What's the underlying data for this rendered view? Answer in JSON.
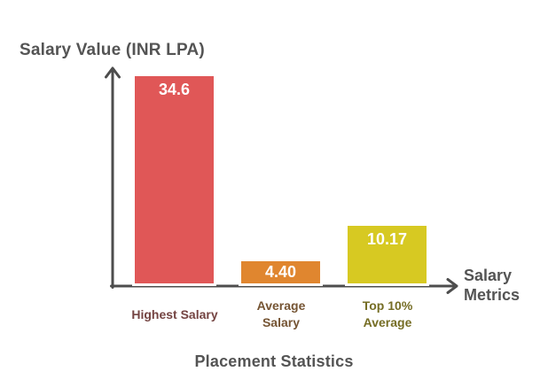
{
  "chart_data": {
    "type": "bar",
    "title": "Placement Statistics",
    "xlabel": "Salary Metrics",
    "ylabel": "Salary Value (INR LPA)",
    "categories": [
      "Highest Salary",
      "Average Salary",
      "Top 10% Average"
    ],
    "values": [
      34.6,
      4.4,
      10.17
    ],
    "value_labels": [
      "34.6",
      "4.40",
      "10.17"
    ],
    "bar_colors": [
      "#e05757",
      "#e0862f",
      "#d7c922"
    ],
    "bar_border_color": "#ffffff",
    "category_label_colors": [
      "#744442",
      "#755433",
      "#756d24"
    ],
    "value_label_color": "#ffffff",
    "axis_color": "#4d4d4d",
    "text_color": "#545454",
    "background": "#ffffff",
    "ylim": [
      0,
      35
    ],
    "grid": false,
    "legend": false,
    "axis_style": "arrow"
  }
}
